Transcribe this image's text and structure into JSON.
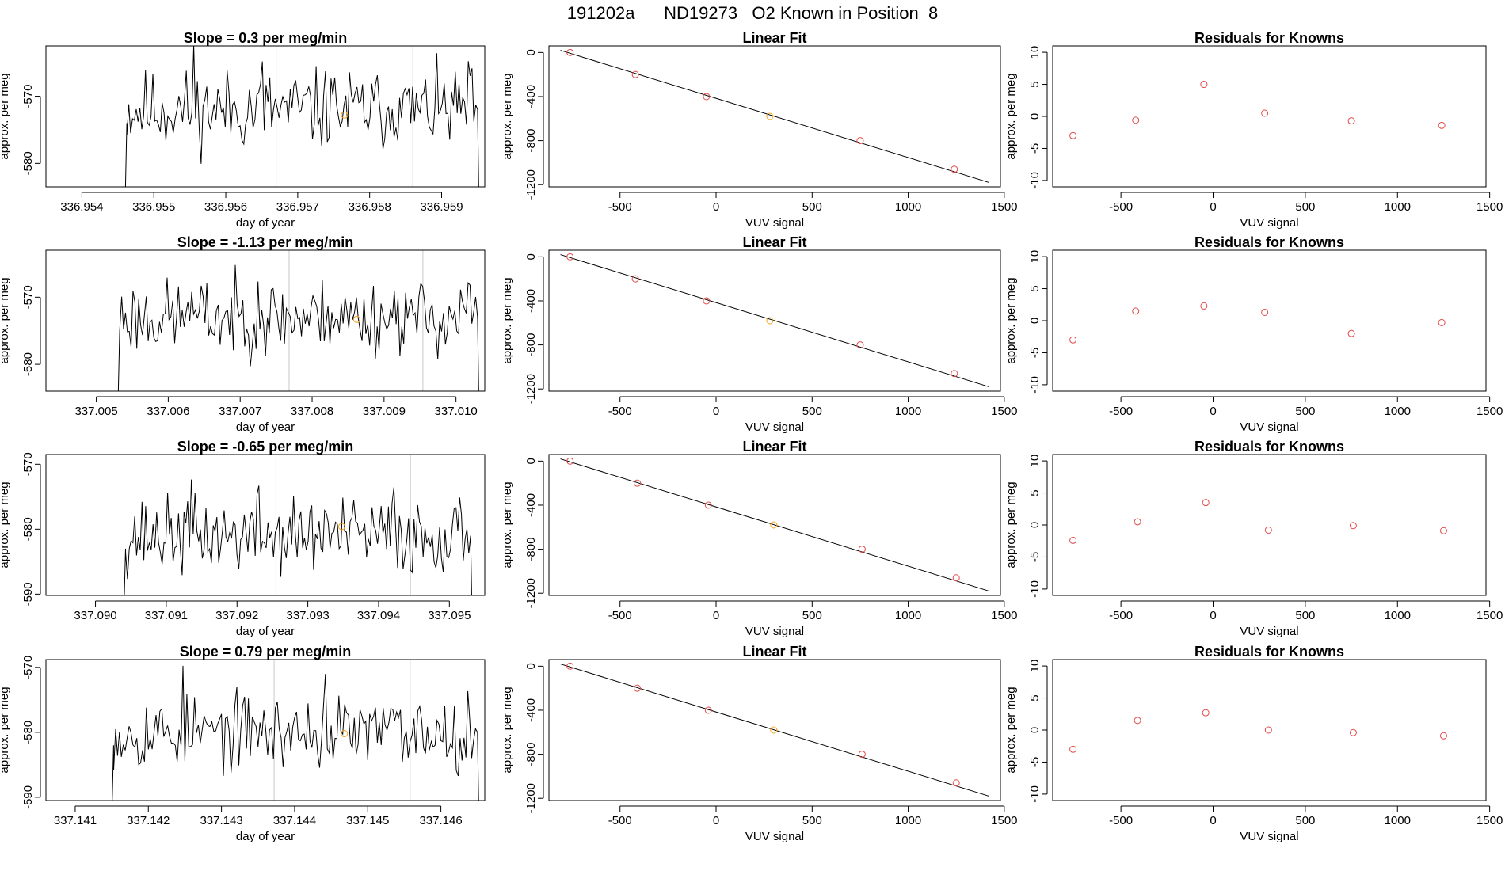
{
  "page_title": "191202a      ND19273   O2 Known in Position  8",
  "chart_data": [
    {
      "type": "line",
      "title": "Slope =  0.3  per meg/min",
      "xlabel": "day of year",
      "ylabel": "approx. per meg",
      "xlim": [
        336.9535,
        336.9596
      ],
      "ylim": [
        -583.5,
        -562.5
      ],
      "xticks": [
        336.954,
        336.955,
        336.956,
        336.957,
        336.958,
        336.959
      ],
      "xtick_labels": [
        "336.954",
        "336.955",
        "336.956",
        "336.957",
        "336.958",
        "336.959"
      ],
      "yticks": [
        -580,
        -570
      ],
      "ytick_labels": [
        "-580",
        "-570"
      ],
      "vlines": [
        336.9567,
        336.9586
      ],
      "series_seed": 11,
      "series_range": [
        336.9546,
        336.9595
      ],
      "series_mean": -572,
      "series_amp": 4.2,
      "yellow_point": [
        336.95765,
        -572.8
      ]
    },
    {
      "type": "line",
      "title": "Slope =  -1.13  per meg/min",
      "xlabel": "day of year",
      "ylabel": "approx. per meg",
      "xlim": [
        337.0043,
        337.0104
      ],
      "ylim": [
        -584,
        -563
      ],
      "xticks": [
        337.005,
        337.006,
        337.007,
        337.008,
        337.009,
        337.01
      ],
      "xtick_labels": [
        "337.005",
        "337.006",
        "337.007",
        "337.008",
        "337.009",
        "337.010"
      ],
      "yticks": [
        -580,
        -570
      ],
      "ytick_labels": [
        "-580",
        "-570"
      ],
      "vlines": [
        337.00768,
        337.00954
      ],
      "series_seed": 23,
      "series_range": [
        337.0053,
        337.0103
      ],
      "series_mean": -573,
      "series_amp": 4.0,
      "yellow_point": [
        337.00862,
        -573.3
      ]
    },
    {
      "type": "line",
      "title": "Slope =  -0.65  per meg/min",
      "xlabel": "day of year",
      "ylabel": "approx. per meg",
      "xlim": [
        337.0893,
        337.0955
      ],
      "ylim": [
        -590.2,
        -568.5
      ],
      "xticks": [
        337.09,
        337.091,
        337.092,
        337.093,
        337.094,
        337.095
      ],
      "xtick_labels": [
        "337.090",
        "337.091",
        "337.092",
        "337.093",
        "337.094",
        "337.095"
      ],
      "yticks": [
        -590,
        -580,
        -570
      ],
      "ytick_labels": [
        "-590",
        "-580",
        "-570"
      ],
      "vlines": [
        337.09255,
        337.09445
      ],
      "series_seed": 37,
      "series_range": [
        337.0904,
        337.0953
      ],
      "series_mean": -581,
      "series_amp": 4.2,
      "yellow_point": [
        337.09348,
        -579.6
      ]
    },
    {
      "type": "line",
      "title": "Slope =  0.79  per meg/min",
      "xlabel": "day of year",
      "ylabel": "approx. per meg",
      "xlim": [
        337.1406,
        337.1466
      ],
      "ylim": [
        -590.5,
        -568.8
      ],
      "xticks": [
        337.141,
        337.142,
        337.143,
        337.144,
        337.145,
        337.146
      ],
      "xtick_labels": [
        "337.141",
        "337.142",
        "337.143",
        "337.144",
        "337.145",
        "337.146"
      ],
      "yticks": [
        -590,
        -580,
        -570
      ],
      "ytick_labels": [
        "-590",
        "-580",
        "-570"
      ],
      "vlines": [
        337.14372,
        337.14558
      ],
      "series_seed": 53,
      "series_range": [
        337.1415,
        337.1465
      ],
      "series_mean": -580,
      "series_amp": 4.0,
      "yellow_point": [
        337.14468,
        -580.2
      ]
    },
    {
      "type": "scatter",
      "title": "Linear Fit",
      "xlabel": "VUV signal",
      "ylabel": "approx. per meg",
      "xlim": [
        -870,
        1480
      ],
      "ylim": [
        -1220,
        60
      ],
      "xticks": [
        -500,
        0,
        500,
        1000,
        1500
      ],
      "xtick_labels": [
        "-500",
        "0",
        "500",
        "1000",
        "1500"
      ],
      "yticks": [
        -1200,
        -800,
        -400,
        0
      ],
      "ytick_labels": [
        "-1200",
        "-800",
        "-400",
        "0"
      ],
      "fit_line": [
        [
          -810,
          20
        ],
        [
          1420,
          -1180
        ]
      ],
      "x": [
        -760,
        -420,
        -50,
        280,
        750,
        1240
      ],
      "y": [
        0,
        -200,
        -400,
        -580,
        -800,
        -1060
      ],
      "highlight_index": 3
    },
    {
      "type": "scatter",
      "title": "Linear Fit",
      "xlabel": "VUV signal",
      "ylabel": "approx. per meg",
      "xlim": [
        -870,
        1480
      ],
      "ylim": [
        -1220,
        60
      ],
      "xticks": [
        -500,
        0,
        500,
        1000,
        1500
      ],
      "xtick_labels": [
        "-500",
        "0",
        "500",
        "1000",
        "1500"
      ],
      "yticks": [
        -1200,
        -800,
        -400,
        0
      ],
      "ytick_labels": [
        "-1200",
        "-800",
        "-400",
        "0"
      ],
      "fit_line": [
        [
          -810,
          20
        ],
        [
          1420,
          -1180
        ]
      ],
      "x": [
        -760,
        -420,
        -50,
        280,
        750,
        1240
      ],
      "y": [
        0,
        -200,
        -400,
        -580,
        -800,
        -1060
      ],
      "highlight_index": 3
    },
    {
      "type": "scatter",
      "title": "Linear Fit",
      "xlabel": "VUV signal",
      "ylabel": "approx. per meg",
      "xlim": [
        -870,
        1480
      ],
      "ylim": [
        -1220,
        60
      ],
      "xticks": [
        -500,
        0,
        500,
        1000,
        1500
      ],
      "xtick_labels": [
        "-500",
        "0",
        "500",
        "1000",
        "1500"
      ],
      "yticks": [
        -1200,
        -800,
        -400,
        0
      ],
      "ytick_labels": [
        "-1200",
        "-800",
        "-400",
        "0"
      ],
      "fit_line": [
        [
          -810,
          20
        ],
        [
          1420,
          -1180
        ]
      ],
      "x": [
        -760,
        -410,
        -40,
        300,
        760,
        1250
      ],
      "y": [
        0,
        -200,
        -400,
        -580,
        -800,
        -1060
      ],
      "highlight_index": 3
    },
    {
      "type": "scatter",
      "title": "Linear Fit",
      "xlabel": "VUV signal",
      "ylabel": "approx. per meg",
      "xlim": [
        -870,
        1480
      ],
      "ylim": [
        -1220,
        60
      ],
      "xticks": [
        -500,
        0,
        500,
        1000,
        1500
      ],
      "xtick_labels": [
        "-500",
        "0",
        "500",
        "1000",
        "1500"
      ],
      "yticks": [
        -1200,
        -800,
        -400,
        0
      ],
      "ytick_labels": [
        "-1200",
        "-800",
        "-400",
        "0"
      ],
      "fit_line": [
        [
          -810,
          20
        ],
        [
          1420,
          -1180
        ]
      ],
      "x": [
        -760,
        -410,
        -40,
        300,
        760,
        1250
      ],
      "y": [
        0,
        -200,
        -400,
        -580,
        -800,
        -1060
      ],
      "highlight_index": 3
    },
    {
      "type": "scatter",
      "title": "Residuals for Knowns",
      "xlabel": "VUV signal",
      "ylabel": "approx. per meg",
      "xlim": [
        -870,
        1480
      ],
      "ylim": [
        -11,
        11
      ],
      "xticks": [
        -500,
        0,
        500,
        1000,
        1500
      ],
      "xtick_labels": [
        "-500",
        "0",
        "500",
        "1000",
        "1500"
      ],
      "yticks": [
        -10,
        -5,
        0,
        5,
        10
      ],
      "ytick_labels": [
        "-10",
        "-5",
        "0",
        "5",
        "10"
      ],
      "x": [
        -760,
        -420,
        -50,
        280,
        750,
        1240
      ],
      "y": [
        -3.0,
        -0.6,
        5.0,
        0.5,
        -0.7,
        -1.4
      ]
    },
    {
      "type": "scatter",
      "title": "Residuals for Knowns",
      "xlabel": "VUV signal",
      "ylabel": "approx. per meg",
      "xlim": [
        -870,
        1480
      ],
      "ylim": [
        -11,
        11
      ],
      "xticks": [
        -500,
        0,
        500,
        1000,
        1500
      ],
      "xtick_labels": [
        "-500",
        "0",
        "500",
        "1000",
        "1500"
      ],
      "yticks": [
        -10,
        -5,
        0,
        5,
        10
      ],
      "ytick_labels": [
        "-10",
        "-5",
        "0",
        "5",
        "10"
      ],
      "x": [
        -760,
        -420,
        -50,
        280,
        750,
        1240
      ],
      "y": [
        -3.0,
        1.5,
        2.3,
        1.3,
        -2.0,
        -0.3
      ]
    },
    {
      "type": "scatter",
      "title": "Residuals for Knowns",
      "xlabel": "VUV signal",
      "ylabel": "approx. per meg",
      "xlim": [
        -870,
        1480
      ],
      "ylim": [
        -11,
        11
      ],
      "xticks": [
        -500,
        0,
        500,
        1000,
        1500
      ],
      "xtick_labels": [
        "-500",
        "0",
        "500",
        "1000",
        "1500"
      ],
      "yticks": [
        -10,
        -5,
        0,
        5,
        10
      ],
      "ytick_labels": [
        "-10",
        "-5",
        "0",
        "5",
        "10"
      ],
      "x": [
        -760,
        -410,
        -40,
        300,
        760,
        1250
      ],
      "y": [
        -2.4,
        0.5,
        3.5,
        -0.8,
        -0.1,
        -0.9
      ]
    },
    {
      "type": "scatter",
      "title": "Residuals for Knowns",
      "xlabel": "VUV signal",
      "ylabel": "approx. per meg",
      "xlim": [
        -870,
        1480
      ],
      "ylim": [
        -11,
        11
      ],
      "xticks": [
        -500,
        0,
        500,
        1000,
        1500
      ],
      "xtick_labels": [
        "-500",
        "0",
        "500",
        "1000",
        "1500"
      ],
      "yticks": [
        -10,
        -5,
        0,
        5,
        10
      ],
      "ytick_labels": [
        "-10",
        "-5",
        "0",
        "5",
        "10"
      ],
      "x": [
        -760,
        -410,
        -40,
        300,
        760,
        1250
      ],
      "y": [
        -3.0,
        1.5,
        2.7,
        0.0,
        -0.4,
        -0.9
      ]
    }
  ],
  "colors": {
    "line": "#000000",
    "point": "#e34a4a",
    "highlight": "#f5a623",
    "vline": "#c8c8c8"
  }
}
